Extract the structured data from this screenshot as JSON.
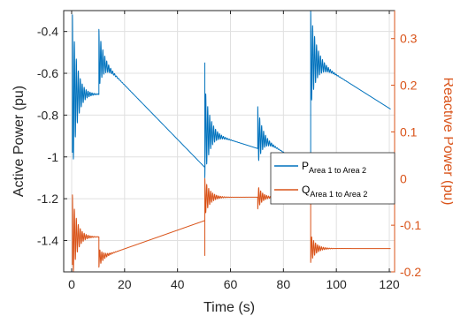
{
  "chart_data": {
    "type": "line",
    "title": "",
    "xlabel": "Time (s)",
    "ylabel_left": "Active Power (pu)",
    "ylabel_right": "Reactive Power (pu)",
    "xlim": [
      -3,
      122
    ],
    "ylim_left": [
      -1.55,
      -0.3
    ],
    "ylim_right": [
      -0.2,
      0.36
    ],
    "xticks": [
      0,
      20,
      40,
      60,
      80,
      100,
      120
    ],
    "yticks_left": [
      -1.4,
      -1.2,
      -1,
      -0.8,
      -0.6,
      -0.4
    ],
    "yticks_right": [
      -0.2,
      -0.1,
      0,
      0.1,
      0.2,
      0.3
    ],
    "xtick_labels": [
      "0",
      "20",
      "40",
      "60",
      "80",
      "100",
      "120"
    ],
    "ytick_labels_left": [
      "-1.4",
      "-1.2",
      "-1",
      "-0.8",
      "-0.6",
      "-0.4"
    ],
    "ytick_labels_right": [
      "-0.2",
      "-0.1",
      "0",
      "0.1",
      "0.2",
      "0.3"
    ],
    "grid": true,
    "legend_position": "right",
    "colors": {
      "active": "#0072BD",
      "reactive": "#D95319",
      "axis": "#262626",
      "grid": "#e0e0e0"
    },
    "series": [
      {
        "name_main": "P",
        "name_sub": "Area 1 to Area 2",
        "axis": "left",
        "color": "#0072BD",
        "segments": [
          {
            "t0": 0.3,
            "t1": 10.3,
            "start": -0.98,
            "peak": -0.32,
            "final": -0.7,
            "drift": 0.0,
            "freq": 1.35,
            "decay": 0.55
          },
          {
            "t0": 10.3,
            "t1": 50.3,
            "start": -0.7,
            "peak": -0.39,
            "final": -0.53,
            "drift": -0.013,
            "freq": 1.35,
            "decay": 0.55
          },
          {
            "t0": 50.3,
            "t1": 70.3,
            "start": -0.55,
            "peak": -1.1,
            "final": -0.88,
            "drift": -0.004,
            "freq": 1.35,
            "decay": 0.5
          },
          {
            "t0": 70.3,
            "t1": 90.3,
            "start": -0.88,
            "peak": -0.76,
            "final": -0.9,
            "drift": -0.008,
            "freq": 1.35,
            "decay": 0.55
          },
          {
            "t0": 90.3,
            "t1": 120.5,
            "start": -0.91,
            "peak": -0.3,
            "final": -0.53,
            "drift": -0.008,
            "freq": 1.35,
            "decay": 0.45
          }
        ]
      },
      {
        "name_main": "Q",
        "name_sub": "Area 1 to Area 2",
        "axis": "right",
        "color": "#D95319",
        "segments": [
          {
            "t0": 0.3,
            "t1": 10.3,
            "start": -0.185,
            "peak": -0.035,
            "final": -0.125,
            "drift": 0.0,
            "freq": 1.35,
            "decay": 0.55
          },
          {
            "t0": 10.3,
            "t1": 50.3,
            "start": -0.125,
            "peak": -0.19,
            "final": -0.17,
            "drift": 0.002,
            "freq": 1.35,
            "decay": 0.55
          },
          {
            "t0": 50.3,
            "t1": 70.3,
            "start": -0.165,
            "peak": 0.0,
            "final": -0.04,
            "drift": 0.0,
            "freq": 1.35,
            "decay": 0.5
          },
          {
            "t0": 70.3,
            "t1": 90.3,
            "start": -0.04,
            "peak": -0.065,
            "final": -0.04,
            "drift": 0.0,
            "freq": 1.35,
            "decay": 0.55
          },
          {
            "t0": 90.3,
            "t1": 120.5,
            "start": -0.04,
            "peak": -0.18,
            "final": -0.15,
            "drift": 0.0,
            "freq": 1.35,
            "decay": 0.5
          }
        ]
      }
    ]
  }
}
